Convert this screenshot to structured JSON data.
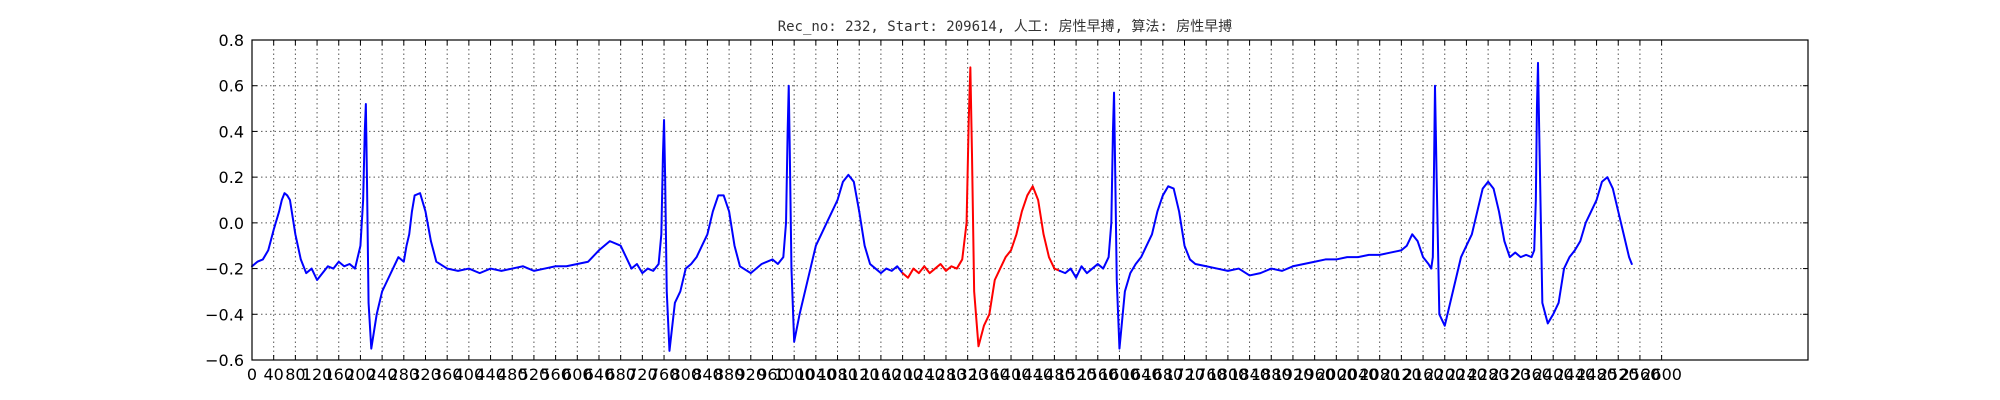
{
  "chart_data": {
    "type": "line",
    "title": "Rec_no: 232, Start: 209614, 人工: 房性早搏, 算法: 房性早搏",
    "xlabel": "",
    "ylabel": "",
    "xlim": [
      0,
      2870
    ],
    "ylim": [
      -0.6,
      0.8
    ],
    "y_ticks": [
      -0.6,
      -0.4,
      -0.2,
      0.0,
      0.2,
      0.4,
      0.6,
      0.8
    ],
    "y_tick_labels": [
      "−0.6",
      "−0.4",
      "−0.2",
      "0.0",
      "0.2",
      "0.4",
      "0.6",
      "0.8"
    ],
    "x_ticks": [
      0,
      40,
      80,
      120,
      160,
      200,
      240,
      280,
      320,
      360,
      400,
      440,
      480,
      520,
      560,
      600,
      640,
      680,
      720,
      760,
      800,
      840,
      880,
      920,
      960,
      1000,
      1040,
      1080,
      1120,
      1160,
      1200,
      1240,
      1280,
      1320,
      1360,
      1400,
      1440,
      1480,
      1520,
      1560,
      1600,
      1640,
      1680,
      1720,
      1760,
      1800,
      1840,
      1880,
      1920,
      1960,
      2000,
      2040,
      2080,
      2120,
      2160,
      2200,
      2240,
      2280,
      2320,
      2360,
      2400,
      2440,
      2480,
      2520,
      2560,
      2600
    ],
    "grid": true,
    "legend": "none",
    "series": [
      {
        "color": "#0000ff",
        "x": [
          0,
          10,
          20,
          30,
          40,
          50,
          55,
          60,
          65,
          70,
          80,
          90,
          100,
          110,
          120,
          130,
          140,
          150,
          160,
          170,
          180,
          190,
          200,
          205,
          208,
          210,
          212,
          215,
          220,
          230,
          240,
          250,
          260,
          270,
          280,
          285,
          290,
          295,
          300,
          310,
          320,
          330,
          340,
          360,
          380,
          400,
          420,
          440,
          460,
          480,
          500,
          520,
          540,
          560,
          580,
          600,
          620,
          640,
          660,
          680,
          700,
          710,
          720,
          730,
          740,
          750,
          755,
          758,
          760,
          762,
          765,
          770,
          780,
          790,
          800,
          810,
          820,
          830,
          840,
          850,
          860,
          870,
          880,
          890,
          900,
          920,
          940,
          960,
          970,
          980,
          985,
          988,
          990,
          992,
          995,
          1000,
          1010,
          1020,
          1030,
          1040,
          1050,
          1060,
          1070,
          1080,
          1090,
          1100,
          1110,
          1120
        ],
        "y": [
          -0.19,
          -0.17,
          -0.16,
          -0.12,
          -0.03,
          0.05,
          0.1,
          0.13,
          0.12,
          0.1,
          -0.05,
          -0.16,
          -0.22,
          -0.2,
          -0.25,
          -0.22,
          -0.19,
          -0.2,
          -0.17,
          -0.19,
          -0.18,
          -0.2,
          -0.1,
          0.1,
          0.4,
          0.52,
          0.2,
          -0.35,
          -0.55,
          -0.4,
          -0.3,
          -0.25,
          -0.2,
          -0.15,
          -0.17,
          -0.1,
          -0.05,
          0.05,
          0.12,
          0.13,
          0.05,
          -0.08,
          -0.17,
          -0.2,
          -0.21,
          -0.2,
          -0.22,
          -0.2,
          -0.21,
          -0.2,
          -0.19,
          -0.21,
          -0.2,
          -0.19,
          -0.19,
          -0.18,
          -0.17,
          -0.12,
          -0.08,
          -0.1,
          -0.2,
          -0.18,
          -0.22,
          -0.2,
          -0.21,
          -0.18,
          -0.05,
          0.3,
          0.45,
          0.2,
          -0.3,
          -0.56,
          -0.35,
          -0.3,
          -0.2,
          -0.18,
          -0.15,
          -0.1,
          -0.05,
          0.05,
          0.12,
          0.12,
          0.05,
          -0.1,
          -0.19,
          -0.22,
          -0.18,
          -0.16,
          -0.18,
          -0.15,
          0.0,
          0.4,
          0.6,
          0.3,
          -0.2,
          -0.52,
          -0.4,
          -0.3,
          -0.2,
          -0.1,
          -0.05,
          0.0,
          0.05,
          0.1,
          0.18,
          0.21,
          0.18,
          0.05
        ]
      },
      {
        "color": "#0000ff",
        "x": [
          1120,
          1130,
          1140,
          1150,
          1160,
          1170,
          1180,
          1190,
          1200
        ],
        "y": [
          0.05,
          -0.1,
          -0.18,
          -0.2,
          -0.22,
          -0.2,
          -0.21,
          -0.19,
          -0.22
        ]
      },
      {
        "color": "#ff0000",
        "x": [
          1200,
          1210,
          1220,
          1230,
          1240,
          1250,
          1260,
          1270,
          1280,
          1290,
          1300,
          1310,
          1318,
          1322,
          1325,
          1328,
          1332,
          1340,
          1350,
          1360,
          1370,
          1380,
          1390,
          1400,
          1410,
          1420,
          1430,
          1440,
          1450,
          1460,
          1470,
          1480,
          1490
        ],
        "y": [
          -0.22,
          -0.24,
          -0.2,
          -0.22,
          -0.19,
          -0.22,
          -0.2,
          -0.18,
          -0.21,
          -0.19,
          -0.2,
          -0.16,
          0.0,
          0.45,
          0.68,
          0.3,
          -0.3,
          -0.54,
          -0.45,
          -0.4,
          -0.25,
          -0.2,
          -0.15,
          -0.12,
          -0.05,
          0.05,
          0.12,
          0.16,
          0.1,
          -0.05,
          -0.15,
          -0.2,
          -0.21
        ]
      },
      {
        "color": "#0000ff",
        "x": [
          1490,
          1500,
          1510,
          1520,
          1530,
          1540,
          1550,
          1560,
          1570,
          1580,
          1585,
          1588,
          1590,
          1592,
          1595,
          1600,
          1610,
          1620,
          1630,
          1640,
          1650,
          1660,
          1670,
          1680,
          1690,
          1700,
          1710,
          1720,
          1730,
          1740,
          1760,
          1780,
          1800,
          1820,
          1840,
          1860,
          1880,
          1900,
          1920,
          1940,
          1960,
          1980,
          2000,
          2020,
          2040,
          2060,
          2080,
          2100,
          2120,
          2130,
          2140,
          2150,
          2160,
          2170,
          2175,
          2178,
          2180,
          2182,
          2185,
          2190,
          2200,
          2210,
          2220,
          2230,
          2240,
          2250,
          2260,
          2270,
          2280,
          2290,
          2300,
          2310,
          2320,
          2330,
          2340,
          2350,
          2360,
          2365,
          2368,
          2370,
          2372,
          2375,
          2380,
          2390,
          2400,
          2410,
          2420,
          2430,
          2440,
          2450,
          2460,
          2470,
          2480,
          2490,
          2500,
          2510,
          2520,
          2530,
          2540,
          2545
        ],
        "y": [
          -0.21,
          -0.22,
          -0.2,
          -0.24,
          -0.19,
          -0.22,
          -0.2,
          -0.18,
          -0.2,
          -0.15,
          0.0,
          0.4,
          0.57,
          0.25,
          -0.25,
          -0.55,
          -0.3,
          -0.22,
          -0.18,
          -0.15,
          -0.1,
          -0.05,
          0.05,
          0.12,
          0.16,
          0.15,
          0.05,
          -0.1,
          -0.16,
          -0.18,
          -0.19,
          -0.2,
          -0.21,
          -0.2,
          -0.23,
          -0.22,
          -0.2,
          -0.21,
          -0.19,
          -0.18,
          -0.17,
          -0.16,
          -0.16,
          -0.15,
          -0.15,
          -0.14,
          -0.14,
          -0.13,
          -0.12,
          -0.1,
          -0.05,
          -0.08,
          -0.15,
          -0.18,
          -0.2,
          -0.15,
          0.2,
          0.6,
          0.2,
          -0.4,
          -0.45,
          -0.35,
          -0.25,
          -0.15,
          -0.1,
          -0.05,
          0.05,
          0.15,
          0.18,
          0.15,
          0.05,
          -0.08,
          -0.15,
          -0.13,
          -0.15,
          -0.14,
          -0.15,
          -0.12,
          0.1,
          0.5,
          0.7,
          0.3,
          -0.35,
          -0.44,
          -0.4,
          -0.35,
          -0.2,
          -0.15,
          -0.12,
          -0.08,
          0.0,
          0.05,
          0.1,
          0.18,
          0.2,
          0.15,
          0.05,
          -0.05,
          -0.15,
          -0.18
        ]
      }
    ]
  }
}
